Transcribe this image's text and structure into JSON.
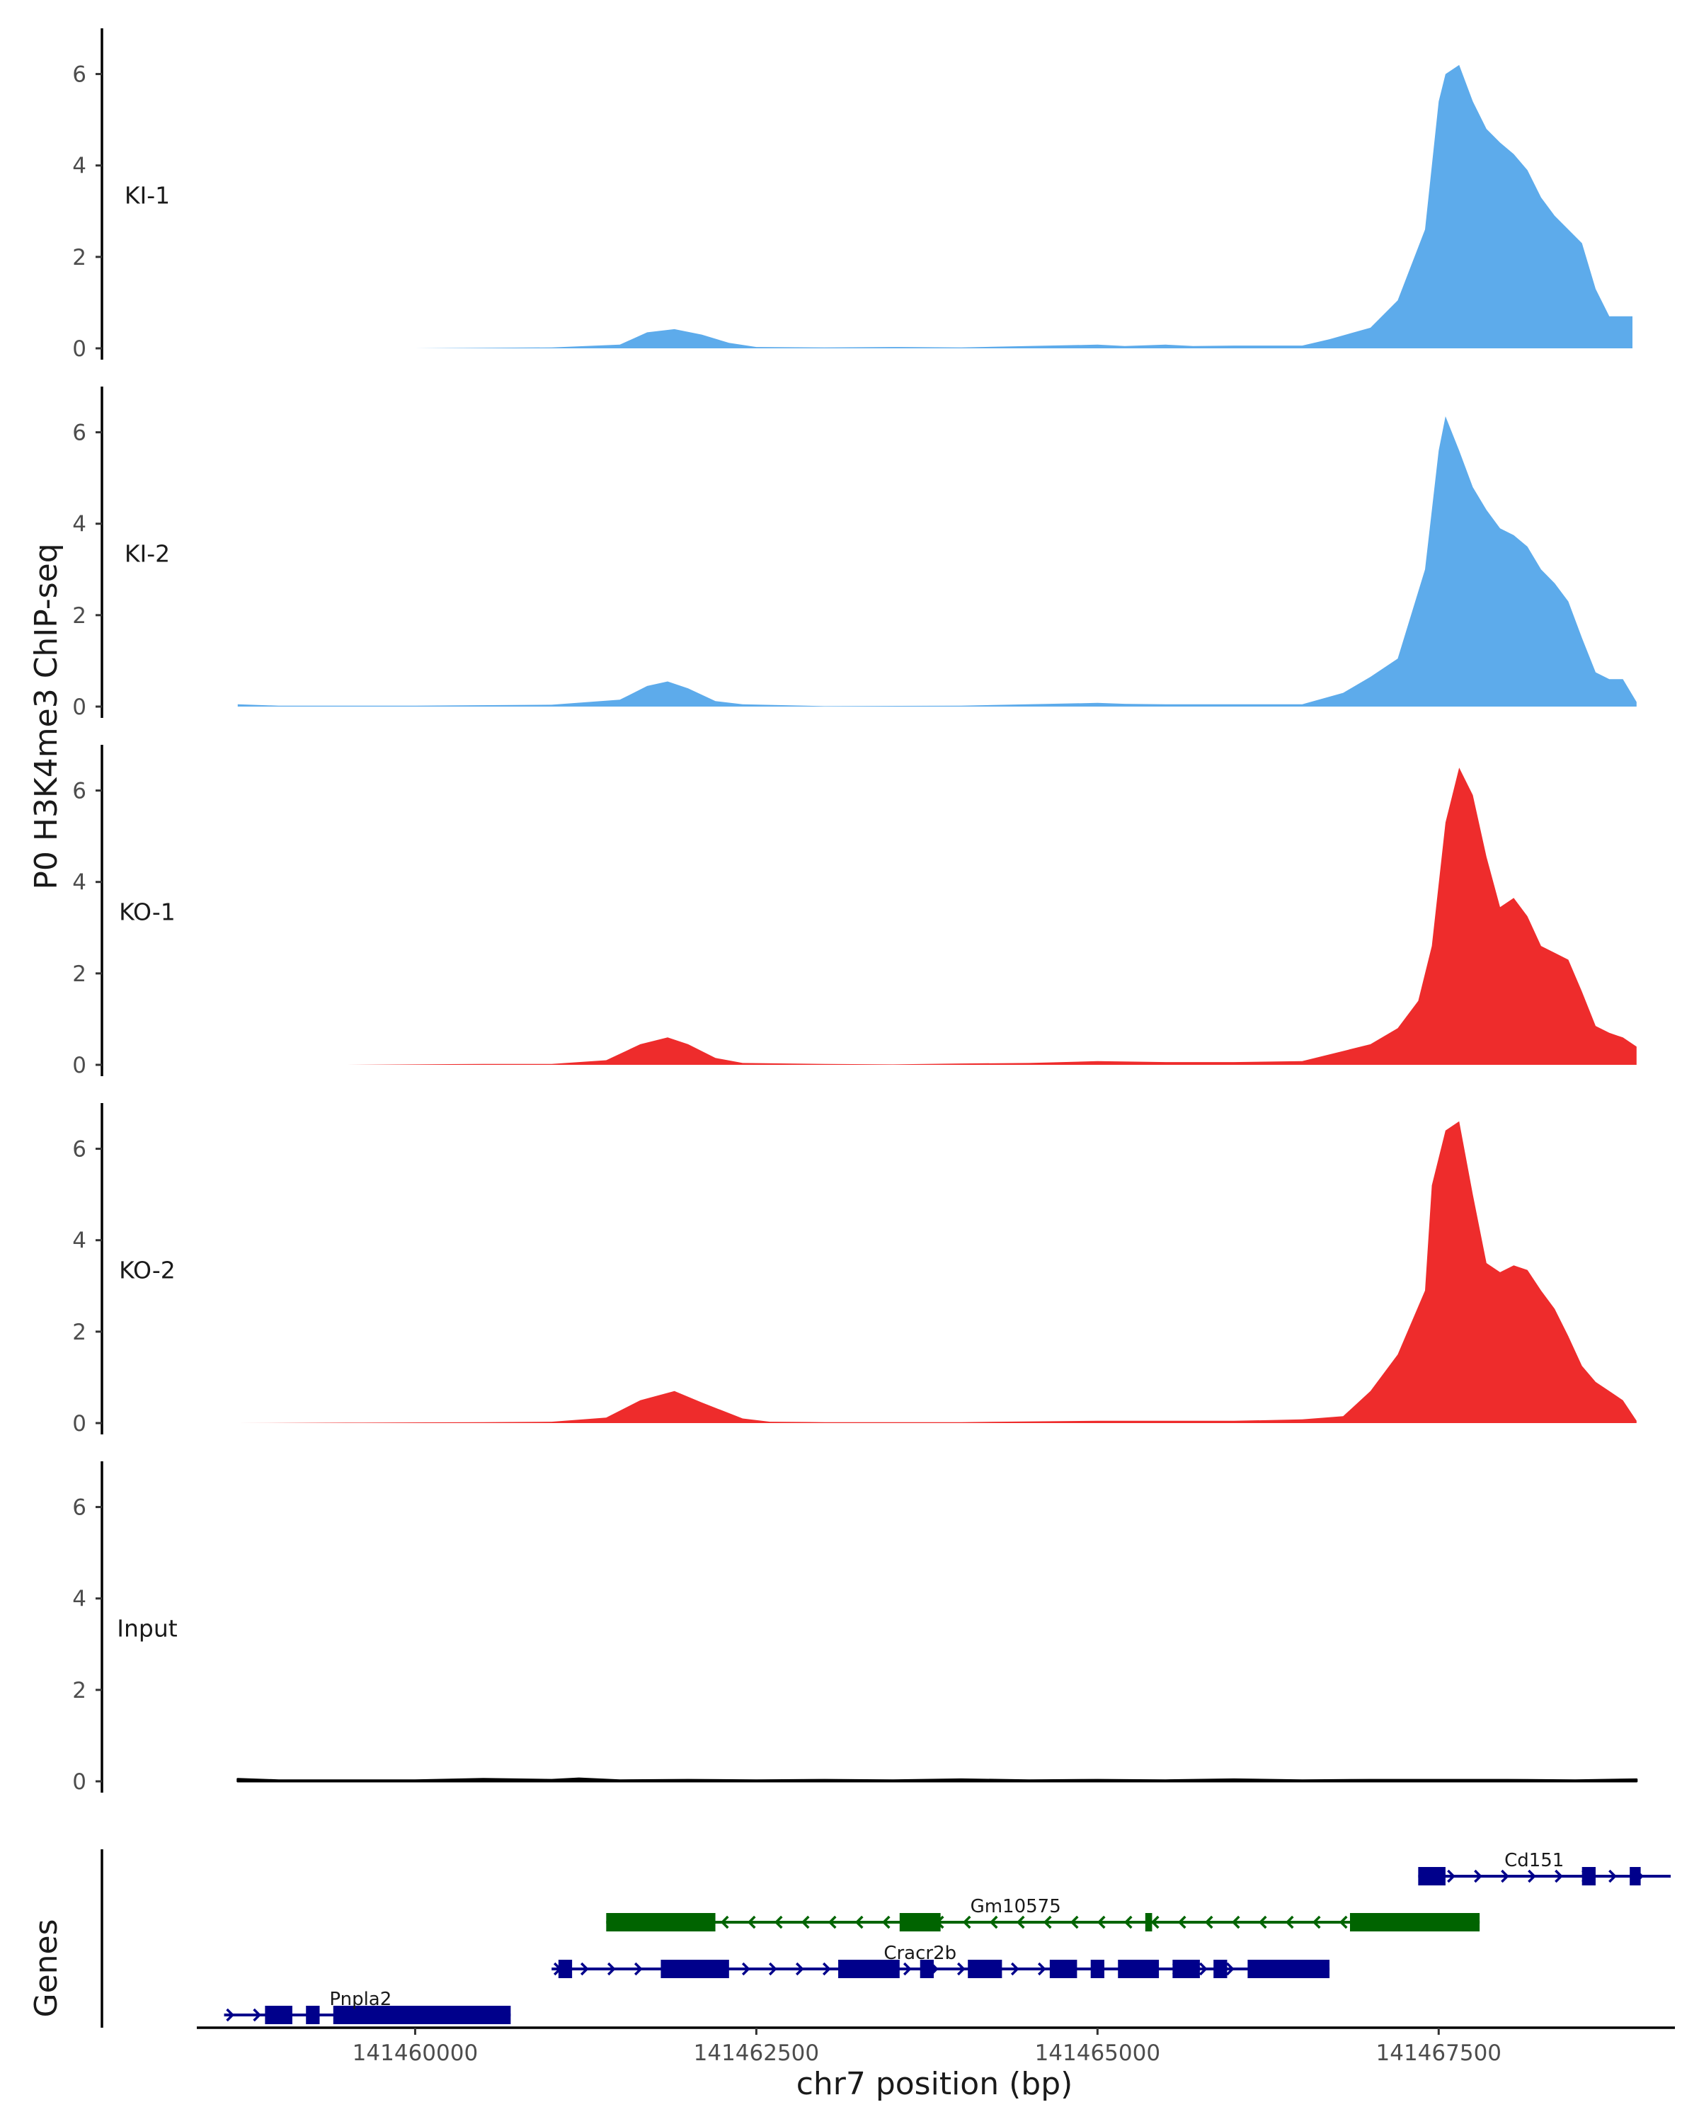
{
  "chart_data": {
    "type": "area",
    "ylabel": "P0 H3K4me3 ChIP-seq",
    "xlabel": "chr7 position (bp)",
    "genes_label": "Genes",
    "x_range": [
      141458400,
      141469200
    ],
    "xticks": [
      141460000,
      141462500,
      141465000,
      141467500
    ],
    "xtick_labels": [
      "141460000",
      "141462500",
      "141465000",
      "141467500"
    ],
    "y_range": [
      0,
      7
    ],
    "yticks": [
      0,
      2,
      4,
      6
    ],
    "ytick_labels": [
      "0",
      "2",
      "4",
      "6"
    ],
    "colors": {
      "KI": "#5dabeb",
      "KO": "#ee2c2c",
      "Input": "#000000",
      "gene_plus": "#00008b",
      "gene_minus": "#006400"
    },
    "tracks": [
      {
        "name": "KI-1",
        "color": "#5dabeb",
        "x": [
          141459500,
          141460000,
          141461000,
          141461500,
          141461700,
          141461900,
          141462100,
          141462300,
          141462500,
          141463000,
          141463500,
          141464000,
          141465000,
          141465200,
          141465500,
          141465700,
          141466000,
          141466500,
          141466700,
          141467000,
          141467200,
          141467400,
          141467500,
          141467550,
          141467650,
          141467750,
          141467850,
          141467950,
          141468050,
          141468150,
          141468250,
          141468350,
          141468450,
          141468550,
          141468650,
          141468750,
          141468850,
          141468920
        ],
        "y": [
          0,
          0,
          0.02,
          0.08,
          0.35,
          0.42,
          0.3,
          0.12,
          0.03,
          0.02,
          0.03,
          0.02,
          0.08,
          0.05,
          0.08,
          0.05,
          0.06,
          0.06,
          0.2,
          0.45,
          1.05,
          2.6,
          5.4,
          6.0,
          6.2,
          5.4,
          4.8,
          4.5,
          4.25,
          3.9,
          3.3,
          2.9,
          2.6,
          2.3,
          1.3,
          0.7,
          0.7,
          0.7
        ]
      },
      {
        "name": "KI-2",
        "color": "#5dabeb",
        "x": [
          141458700,
          141459000,
          141460000,
          141461000,
          141461500,
          141461700,
          141461850,
          141462000,
          141462200,
          141462400,
          141463000,
          141464000,
          141465000,
          141465200,
          141465500,
          141466000,
          141466500,
          141466800,
          141467000,
          141467200,
          141467400,
          141467500,
          141467550,
          141467650,
          141467750,
          141467850,
          141467950,
          141468050,
          141468150,
          141468250,
          141468350,
          141468450,
          141468550,
          141468650,
          141468750,
          141468850,
          141468950
        ],
        "y": [
          0.05,
          0.02,
          0.02,
          0.04,
          0.15,
          0.45,
          0.55,
          0.4,
          0.12,
          0.05,
          0.01,
          0.02,
          0.08,
          0.06,
          0.05,
          0.05,
          0.05,
          0.3,
          0.65,
          1.05,
          3.0,
          5.6,
          6.35,
          5.6,
          4.8,
          4.3,
          3.9,
          3.75,
          3.5,
          3.0,
          2.7,
          2.3,
          1.5,
          0.75,
          0.6,
          0.6,
          0.1
        ]
      },
      {
        "name": "KO-1",
        "color": "#ee2c2c",
        "x": [
          141458700,
          141459500,
          141460500,
          141461000,
          141461400,
          141461650,
          141461850,
          141462000,
          141462200,
          141462400,
          141463000,
          141463500,
          141464000,
          141464500,
          141465000,
          141465500,
          141466000,
          141466500,
          141467000,
          141467200,
          141467350,
          141467450,
          141467550,
          141467650,
          141467750,
          141467850,
          141467950,
          141468050,
          141468150,
          141468250,
          141468350,
          141468450,
          141468550,
          141468650,
          141468750,
          141468850,
          141468950
        ],
        "y": [
          0,
          0,
          0.02,
          0.02,
          0.1,
          0.45,
          0.6,
          0.45,
          0.15,
          0.04,
          0.02,
          0.01,
          0.03,
          0.04,
          0.08,
          0.06,
          0.06,
          0.08,
          0.45,
          0.8,
          1.4,
          2.6,
          5.3,
          6.5,
          5.9,
          4.55,
          3.45,
          3.65,
          3.25,
          2.6,
          2.45,
          2.3,
          1.6,
          0.85,
          0.7,
          0.6,
          0.4
        ]
      },
      {
        "name": "KO-2",
        "color": "#ee2c2c",
        "x": [
          141458700,
          141459500,
          141460500,
          141461000,
          141461400,
          141461650,
          141461900,
          141462100,
          141462400,
          141462600,
          141463000,
          141463500,
          141464000,
          141465000,
          141465500,
          141466000,
          141466500,
          141466800,
          141467000,
          141467200,
          141467400,
          141467450,
          141467550,
          141467650,
          141467750,
          141467850,
          141467950,
          141468050,
          141468150,
          141468250,
          141468350,
          141468450,
          141468550,
          141468650,
          141468750,
          141468850,
          141468950
        ],
        "y": [
          0,
          0.01,
          0.02,
          0.03,
          0.12,
          0.5,
          0.7,
          0.45,
          0.1,
          0.03,
          0.02,
          0.02,
          0.02,
          0.05,
          0.05,
          0.05,
          0.08,
          0.15,
          0.7,
          1.5,
          2.9,
          5.2,
          6.4,
          6.6,
          5.0,
          3.5,
          3.3,
          3.45,
          3.35,
          2.9,
          2.5,
          1.9,
          1.25,
          0.9,
          0.7,
          0.5,
          0.05
        ]
      },
      {
        "name": "Input",
        "color": "#000000",
        "x": [
          141458700,
          141459000,
          141459500,
          141460000,
          141460500,
          141461000,
          141461200,
          141461500,
          141462000,
          141462500,
          141463000,
          141463500,
          141464000,
          141464500,
          141465000,
          141465500,
          141466000,
          141466500,
          141467000,
          141467500,
          141468000,
          141468500,
          141468950
        ],
        "y": [
          0.05,
          0.02,
          0.02,
          0.02,
          0.05,
          0.03,
          0.06,
          0.02,
          0.03,
          0.02,
          0.03,
          0.02,
          0.04,
          0.02,
          0.03,
          0.02,
          0.04,
          0.02,
          0.03,
          0.03,
          0.03,
          0.02,
          0.04
        ]
      }
    ],
    "genes": [
      {
        "name": "Cd151",
        "strand": "+",
        "color": "#00008b",
        "row": 0,
        "start": 141467350,
        "end": 141469200,
        "exons": [
          [
            141467350,
            141467550
          ],
          [
            141468550,
            141468650
          ],
          [
            141468900,
            141468980
          ]
        ],
        "label_x": 141468200
      },
      {
        "name": "Gm10575",
        "strand": "-",
        "color": "#006400",
        "row": 1,
        "start": 141461400,
        "end": 141467800,
        "exons": [
          [
            141461400,
            141462200
          ],
          [
            141463550,
            141463850
          ],
          [
            141465350,
            141465400
          ],
          [
            141466850,
            141467800
          ]
        ],
        "label_x": 141464400
      },
      {
        "name": "Cracr2b",
        "strand": "+",
        "color": "#00008b",
        "row": 2,
        "start": 141461000,
        "end": 141466700,
        "exons": [
          [
            141461050,
            141461150
          ],
          [
            141461800,
            141462300
          ],
          [
            141463100,
            141463550
          ],
          [
            141463700,
            141463800
          ],
          [
            141464050,
            141464300
          ],
          [
            141464650,
            141464850
          ],
          [
            141464950,
            141465050
          ],
          [
            141465150,
            141465450
          ],
          [
            141465550,
            141465750
          ],
          [
            141465850,
            141465950
          ],
          [
            141466100,
            141466700
          ]
        ],
        "label_x": 141463700
      },
      {
        "name": "Pnpla2",
        "strand": "+",
        "color": "#00008b",
        "row": 3,
        "start": 141458600,
        "end": 141460700,
        "exons": [
          [
            141458900,
            141459100
          ],
          [
            141459200,
            141459300
          ],
          [
            141459400,
            141460700
          ]
        ],
        "label_x": 141459600
      }
    ]
  }
}
